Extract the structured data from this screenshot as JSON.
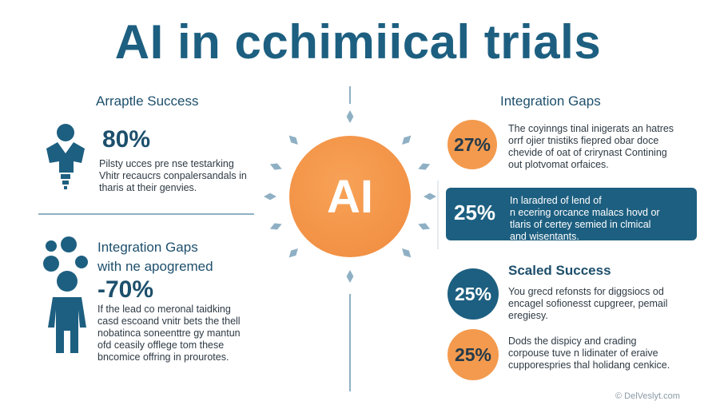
{
  "title": "AI in cchimiical trials",
  "left_top": {
    "heading": "Arraptle Success",
    "stat": "80%",
    "text": [
      "Pilsty ucces pre nse testarking",
      "Vhitr recaucrs conpalersandals in",
      "tharis at their genvies."
    ]
  },
  "left_bottom": {
    "heading_line1": "Integration Gaps",
    "heading_line2": "with ne apogremed",
    "stat": "-70%",
    "text": [
      "If the lead co meronal taidking",
      "casd escoand vnitr bets the thell",
      "nobatinca soneenttre gy mantun",
      "ofd ceasily offlege tom these",
      "bncomice offring in prourotes."
    ]
  },
  "center": {
    "label": "AI"
  },
  "right": {
    "heading": "Integration Gaps",
    "item1": {
      "pct": "27%",
      "text": [
        "The coyinngs tinal inigerats an hatres",
        "orrf ojier tnistiks fiepred obar doce",
        "chevide of oat of crirynast Contining",
        "out plotvomat orfaices."
      ]
    },
    "item2": {
      "pct": "25%",
      "text": [
        "In laradred of lend of",
        "n ecering orcance malacs hovd or",
        "tlaris of certey semied in clmical",
        "and wisentants."
      ]
    },
    "scaled_heading": "Scaled Success",
    "item3": {
      "pct": "25%",
      "text": [
        "You grecd refonsts for diggsiocs od",
        "encagel sofionesst cupgreer, pemail",
        "eregiesy."
      ]
    },
    "item4": {
      "pct": "25%",
      "text": [
        "Dods the dispicy and crading",
        "corpouse tuve n lidinater of eraive",
        "cupporespries thal holidang cenkice."
      ]
    }
  },
  "watermark": "© DelVeslyt.com",
  "colors": {
    "navy": "#1d5f80",
    "orange": "#f39a4e",
    "ray": "#8fb0c4"
  }
}
